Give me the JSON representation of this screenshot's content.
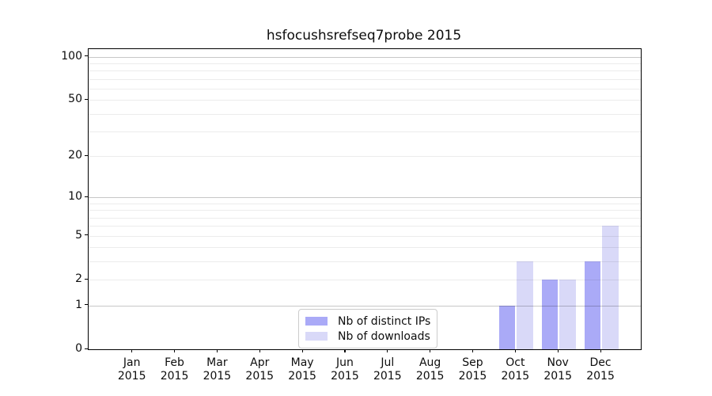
{
  "chart_data": {
    "type": "bar",
    "title": "hsfocushsrefseq7probe 2015",
    "categories": [
      "Jan",
      "Feb",
      "Mar",
      "Apr",
      "May",
      "Jun",
      "Jul",
      "Aug",
      "Sep",
      "Oct",
      "Nov",
      "Dec"
    ],
    "year": "2015",
    "series": [
      {
        "name": "Nb of distinct IPs",
        "color": "#aaaaf7",
        "values": [
          0,
          0,
          0,
          0,
          0,
          0,
          0,
          0,
          0,
          1,
          2,
          3
        ]
      },
      {
        "name": "Nb of downloads",
        "color": "#d9d9f8",
        "values": [
          0,
          0,
          0,
          0,
          0,
          0,
          0,
          0,
          0,
          3,
          2,
          6
        ]
      }
    ],
    "xlabel": "",
    "ylabel": "",
    "yscale": "log1p",
    "yticks": [
      0,
      1,
      2,
      5,
      10,
      20,
      50,
      100
    ],
    "minor_yticks": [
      3,
      4,
      6,
      7,
      8,
      9,
      30,
      40,
      60,
      70,
      80,
      90
    ],
    "ylim": [
      0,
      113
    ],
    "grid": true,
    "legend_position": "lower center",
    "background": "#ffffff",
    "axis_color": "#000000"
  }
}
